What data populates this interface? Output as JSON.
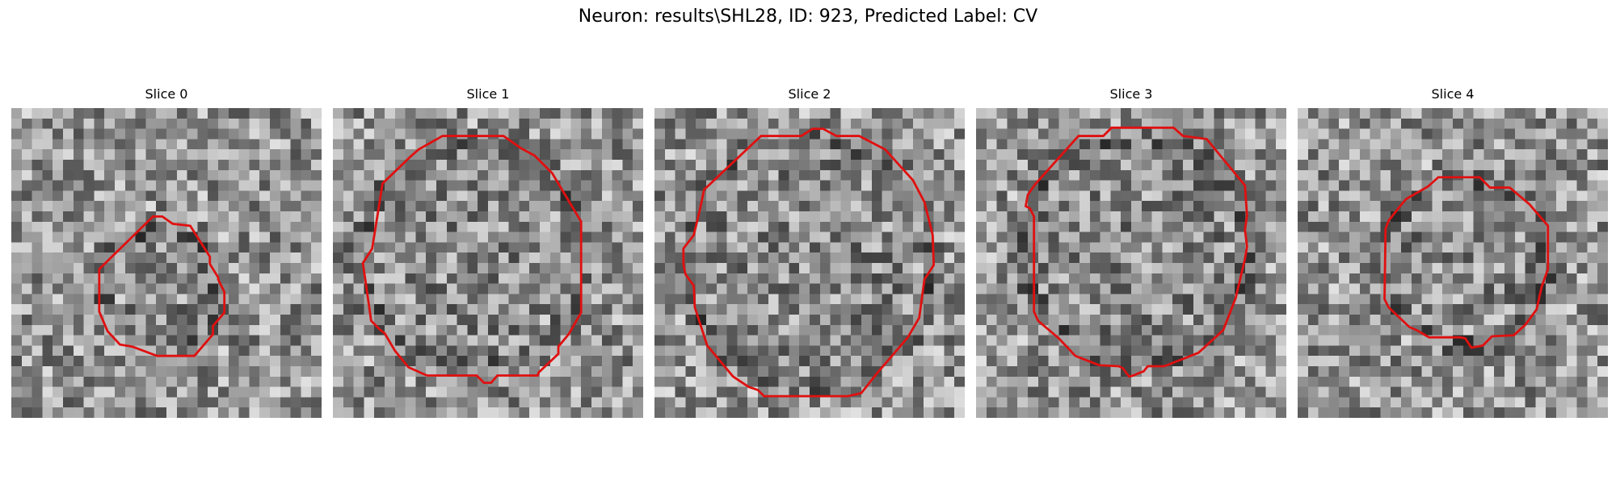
{
  "figure": {
    "suptitle": "Neuron: results\\SHL28, ID: 923, Predicted Label: CV",
    "contour_color": "#e01010"
  },
  "slices": [
    {
      "title": "Slice 0"
    },
    {
      "title": "Slice 1"
    },
    {
      "title": "Slice 2"
    },
    {
      "title": "Slice 3"
    },
    {
      "title": "Slice 4"
    }
  ]
}
